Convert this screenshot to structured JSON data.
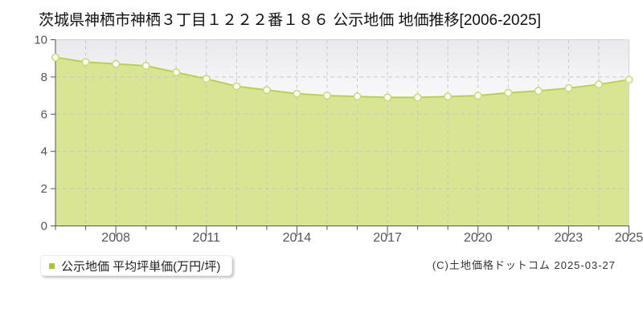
{
  "page": {
    "title": "茨城県神栖市神栖３丁目１２２２番１８６ 公示地価 地価推移[2006-2025]"
  },
  "legend": {
    "label": "公示地価 平均坪単価(万円/坪)",
    "marker_color": "#a6c92f"
  },
  "footer": {
    "copyright": "(C)土地価格ドットコム 2025-03-27"
  },
  "chart_data": {
    "type": "area",
    "title": "茨城県神栖市神栖３丁目１２２２番１８６ 公示地価 地価推移[2006-2025]",
    "series_name": "公示地価 平均坪単価(万円/坪)",
    "unit": "万円/坪",
    "x": [
      2006,
      2007,
      2008,
      2009,
      2010,
      2011,
      2012,
      2013,
      2014,
      2015,
      2016,
      2017,
      2018,
      2019,
      2020,
      2021,
      2022,
      2023,
      2024,
      2025
    ],
    "values": [
      9.05,
      8.8,
      8.7,
      8.6,
      8.25,
      7.9,
      7.5,
      7.3,
      7.1,
      7.0,
      6.95,
      6.9,
      6.9,
      6.95,
      7.0,
      7.15,
      7.25,
      7.4,
      7.6,
      7.85
    ],
    "ylim": [
      0,
      10
    ],
    "yticks": [
      0,
      2,
      4,
      6,
      8,
      10
    ],
    "xtick_labels": [
      2008,
      2011,
      2014,
      2017,
      2020,
      2023,
      2025
    ],
    "grid": "dashed",
    "legend_position": "bottom-left",
    "colors": {
      "area_fill": "#d9e593",
      "line": "#b9d24e",
      "marker_fill": "#fffef6",
      "marker_stroke": "#c9dc78",
      "grid": "#c4c4c4",
      "axis": "#555555",
      "tick_label": "#555555",
      "plot_border": "#d4d4d4",
      "plot_bg_top": "#e9e9ed",
      "plot_bg_bottom": "#ffffff"
    }
  }
}
